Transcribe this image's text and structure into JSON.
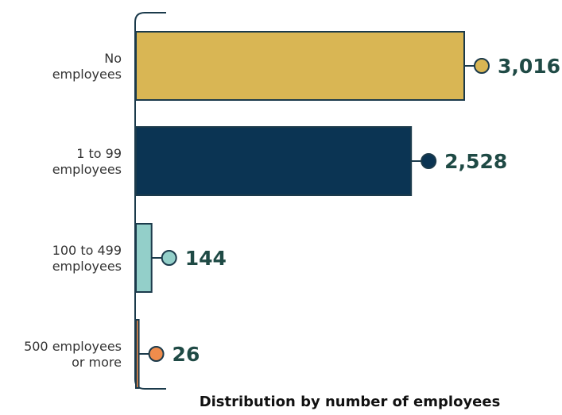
{
  "chart_data": {
    "type": "bar",
    "orientation": "horizontal",
    "categories": [
      [
        "No",
        "employees"
      ],
      [
        "1 to 99",
        "employees"
      ],
      [
        "100 to 499",
        "employees"
      ],
      [
        "500 employees",
        "or more"
      ]
    ],
    "values": [
      3016,
      2528,
      144,
      26
    ],
    "value_labels": [
      "3,016",
      "2,528",
      "144",
      "26"
    ],
    "xlabel": "Distribution by number of employees",
    "colors": [
      "#d9b654",
      "#0b3453",
      "#93cfc9",
      "#ef8c4c"
    ],
    "marker_fill": [
      "#d9b654",
      "#0b3453",
      "#93cfc9",
      "#ef8c4c"
    ],
    "grid": false,
    "xlim": [
      0,
      3120
    ]
  }
}
